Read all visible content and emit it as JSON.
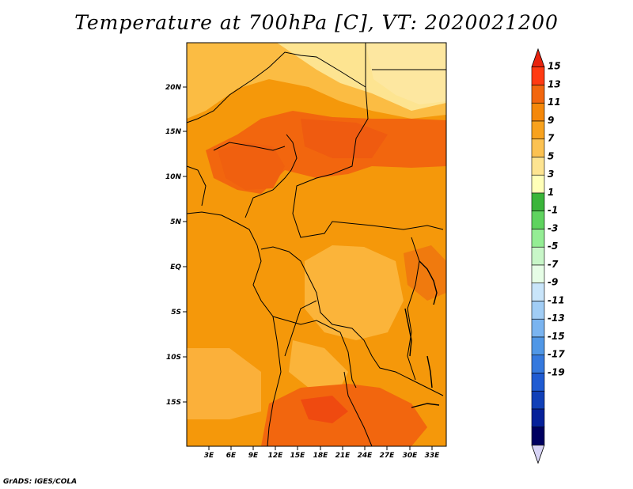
{
  "title": "Temperature at 700hPa [C], VT: 2020021200",
  "credit": "GrADS: IGES/COLA",
  "map": {
    "lat_ticks": [
      "20N",
      "15N",
      "10N",
      "5N",
      "EQ",
      "5S",
      "10S",
      "15S"
    ],
    "lon_ticks": [
      "3E",
      "6E",
      "9E",
      "12E",
      "15E",
      "18E",
      "21E",
      "24E",
      "27E",
      "30E",
      "33E"
    ]
  },
  "colorbar": {
    "labels": [
      "15",
      "13",
      "11",
      "9",
      "7",
      "5",
      "3",
      "1",
      "-1",
      "-3",
      "-5",
      "-7",
      "-9",
      "-11",
      "-13",
      "-15",
      "-17",
      "-19"
    ],
    "colors": [
      "#e8230e",
      "#ff3a12",
      "#f2660e",
      "#f5880a",
      "#f8a21e",
      "#fcc252",
      "#fde491",
      "#ffffb8",
      "#3ab53a",
      "#5fd35f",
      "#94ed94",
      "#c8f6c8",
      "#e6fde6",
      "#c9e5fa",
      "#a1cdf5",
      "#7ab4f0",
      "#5097e6",
      "#3579de",
      "#1f5bd2",
      "#1140b8",
      "#06219a",
      "#000060",
      "#d7d3f5"
    ]
  }
}
